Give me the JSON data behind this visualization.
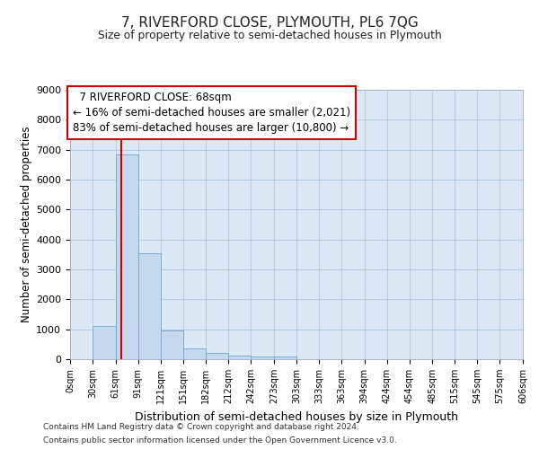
{
  "title": "7, RIVERFORD CLOSE, PLYMOUTH, PL6 7QG",
  "subtitle": "Size of property relative to semi-detached houses in Plymouth",
  "xlabel": "Distribution of semi-detached houses by size in Plymouth",
  "ylabel": "Number of semi-detached properties",
  "annotation_line1": "7 RIVERFORD CLOSE: 68sqm",
  "annotation_line2": "← 16% of semi-detached houses are smaller (2,021)",
  "annotation_line3": "83% of semi-detached houses are larger (10,800) →",
  "property_size_sqm": 68,
  "bin_edges": [
    0,
    30,
    61,
    91,
    121,
    151,
    182,
    212,
    242,
    273,
    303,
    333,
    363,
    394,
    424,
    454,
    485,
    515,
    545,
    575,
    606
  ],
  "bar_heights": [
    0,
    1100,
    6850,
    3550,
    970,
    350,
    220,
    130,
    100,
    100,
    0,
    0,
    0,
    0,
    0,
    0,
    0,
    0,
    0,
    0
  ],
  "bar_color": "#c5d8ee",
  "bar_edge_color": "#7aadd4",
  "red_line_color": "#cc0000",
  "bg_color": "#dce9f5",
  "fig_bg_color": "#ffffff",
  "grid_color": "#b0c8e0",
  "annotation_box_edge_color": "#cc0000",
  "ylim": [
    0,
    9000
  ],
  "yticks": [
    0,
    1000,
    2000,
    3000,
    4000,
    5000,
    6000,
    7000,
    8000,
    9000
  ],
  "footer_line1": "Contains HM Land Registry data © Crown copyright and database right 2024.",
  "footer_line2": "Contains public sector information licensed under the Open Government Licence v3.0."
}
